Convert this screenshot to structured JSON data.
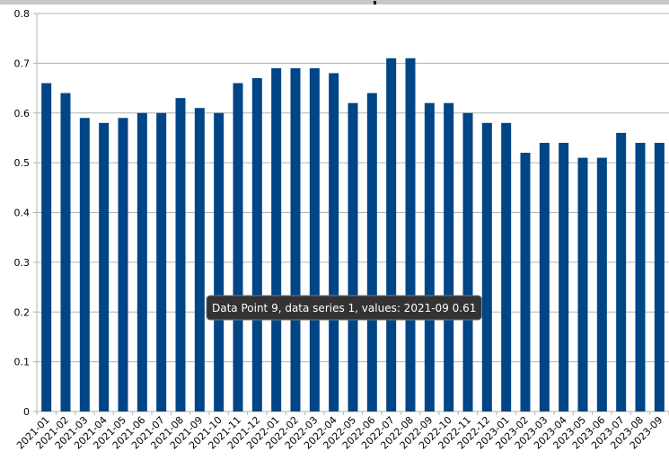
{
  "chart_data": {
    "type": "bar",
    "categories": [
      "2021-01",
      "2021-02",
      "2021-03",
      "2021-04",
      "2021-05",
      "2021-06",
      "2021-07",
      "2021-08",
      "2021-09",
      "2021-10",
      "2021-11",
      "2021-12",
      "2022-01",
      "2022-02",
      "2022-03",
      "2022-04",
      "2022-05",
      "2022-06",
      "2022-07",
      "2022-08",
      "2022-09",
      "2022-10",
      "2022-11",
      "2022-12",
      "2023-01",
      "2023-02",
      "2023-03",
      "2023-04",
      "2023-05",
      "2023-06",
      "2023-07",
      "2023-08",
      "2023-09"
    ],
    "values": [
      0.66,
      0.64,
      0.59,
      0.58,
      0.59,
      0.6,
      0.6,
      0.63,
      0.61,
      0.6,
      0.66,
      0.67,
      0.69,
      0.69,
      0.69,
      0.68,
      0.62,
      0.64,
      0.71,
      0.71,
      0.62,
      0.62,
      0.6,
      0.58,
      0.58,
      0.52,
      0.54,
      0.54,
      0.51,
      0.51,
      0.56,
      0.54,
      0.54
    ],
    "color": "#004586",
    "ylim": [
      0,
      0.8
    ],
    "yticks": [
      0,
      0.1,
      0.2,
      0.3,
      0.4,
      0.5,
      0.6,
      0.7,
      0.8
    ],
    "grid": true,
    "tooltip": "Data Point 9, data series 1, values: 2021-09 0.61"
  }
}
